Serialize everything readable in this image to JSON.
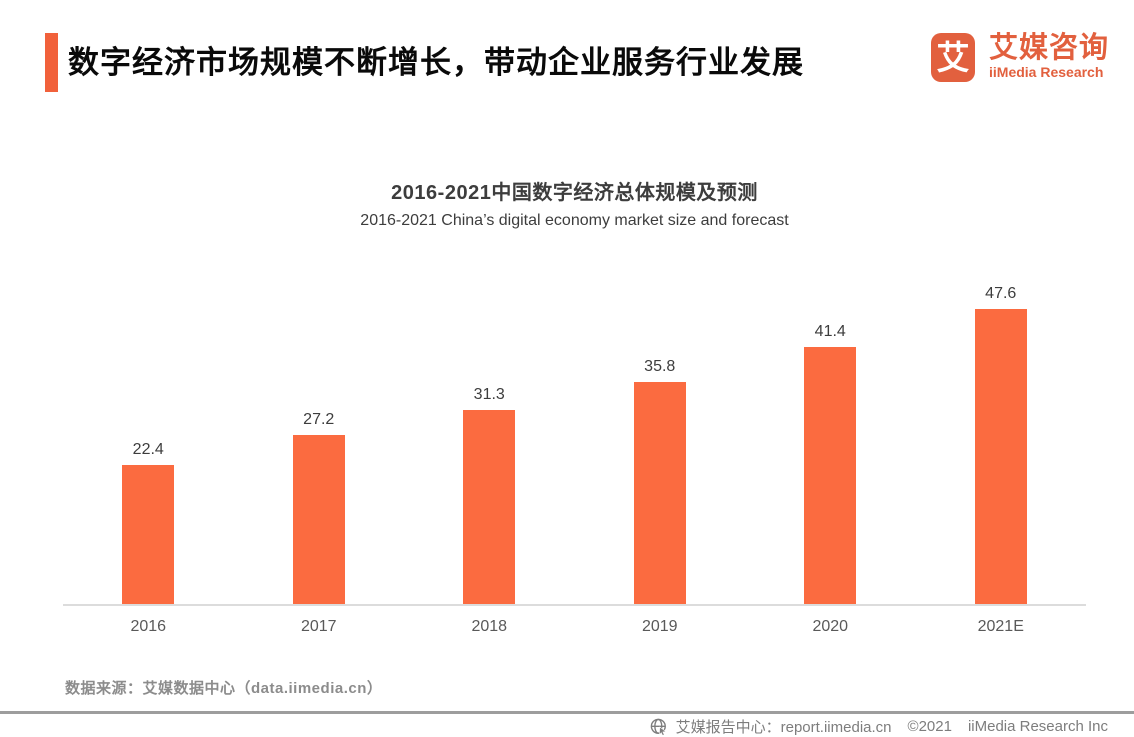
{
  "header": {
    "title": "数字经济市场规模不断增长，带动企业服务行业发展",
    "logo": {
      "mark_glyph": "艾",
      "name_cn": "艾媒咨询",
      "name_en": "iiMedia Research"
    }
  },
  "chart_data": {
    "type": "bar",
    "title": "2016-2021中国数字经济总体规模及预测",
    "subtitle": "2016-2021 China’s digital economy market size and forecast",
    "categories": [
      "2016",
      "2017",
      "2018",
      "2019",
      "2020",
      "2021E"
    ],
    "values": [
      22.4,
      27.2,
      31.3,
      35.8,
      41.4,
      47.6
    ],
    "xlabel": "",
    "ylabel": "",
    "ylim": [
      0,
      50
    ],
    "grid": false,
    "legend": false,
    "value_labels_shown": true,
    "bar_color": "#FB6B40"
  },
  "source": {
    "text": "数据来源：艾媒数据中心（data.iimedia.cn）"
  },
  "footer": {
    "icon": "globe-cursor-icon",
    "parts": [
      "艾媒报告中心：report.iimedia.cn",
      "©2021",
      "iiMedia Research  Inc"
    ]
  },
  "colors": {
    "accent_bar": "#F1613B",
    "logo_orange": "#E2603E",
    "bar_orange": "#FB6B40",
    "title_text": "#0a0a0a",
    "chart_text": "#3d3d3d",
    "muted_gray": "#8c8c8c",
    "footer_gray": "#7d7d7d"
  }
}
